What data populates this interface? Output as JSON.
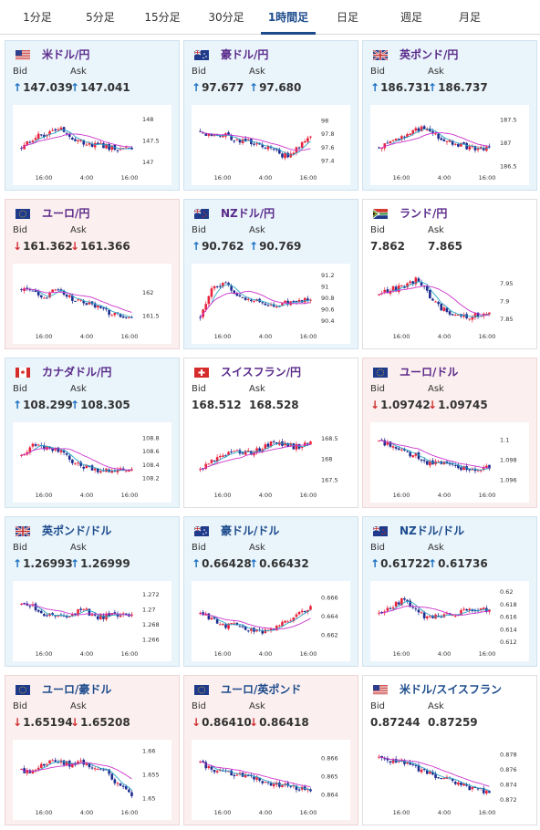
{
  "tabs": [
    "1分足",
    "5分足",
    "15分足",
    "30分足",
    "1時間足",
    "日足",
    "週足",
    "月足"
  ],
  "active_tab": 4,
  "labels": {
    "bid": "Bid",
    "ask": "Ask"
  },
  "colors": {
    "up_arrow": "#1b6fc2",
    "down_arrow": "#d03030",
    "candle_up": "#e8233b",
    "candle_down": "#1e2c8f",
    "ma_short": "#2aa6c7",
    "ma_long": "#cc33cc",
    "bg_up": "#e9f4fb",
    "bg_down": "#fcefef"
  },
  "cards": [
    {
      "pair": "米ドル/円",
      "flag": "us",
      "bid": "147.039",
      "ask": "147.041",
      "dir": "up",
      "theme": "blue",
      "title_color": "purple",
      "chart": {
        "x_ticks": [
          "16:00",
          "4:00",
          "16:00"
        ],
        "y_ticks": [
          "148",
          "147.5",
          "147"
        ],
        "ylim": [
          146.8,
          148.2
        ]
      }
    },
    {
      "pair": "豪ドル/円",
      "flag": "au",
      "bid": "97.677",
      "ask": "97.680",
      "dir": "up",
      "theme": "blue",
      "title_color": "purple",
      "chart": {
        "x_ticks": [
          "16:00",
          "4:00",
          "16:00"
        ],
        "y_ticks": [
          "98",
          "97.8",
          "97.6",
          "97.4"
        ],
        "ylim": [
          97.25,
          98.15
        ]
      }
    },
    {
      "pair": "英ポンド/円",
      "flag": "gb",
      "bid": "186.731",
      "ask": "186.737",
      "dir": "up",
      "theme": "blue",
      "title_color": "purple",
      "chart": {
        "x_ticks": [
          "16:00",
          "4:00",
          "16:00"
        ],
        "y_ticks": [
          "187.5",
          "187",
          "186.5"
        ],
        "ylim": [
          186.4,
          187.7
        ]
      }
    },
    {
      "pair": "ユーロ/円",
      "flag": "eu",
      "bid": "161.362",
      "ask": "161.366",
      "dir": "down",
      "theme": "red",
      "title_color": "purple",
      "chart": {
        "x_ticks": [
          "16:00",
          "4:00",
          "16:00"
        ],
        "y_ticks": [
          "162",
          "161.5"
        ],
        "ylim": [
          161.2,
          162.5
        ]
      }
    },
    {
      "pair": "NZドル/円",
      "flag": "nz",
      "bid": "90.762",
      "ask": "90.769",
      "dir": "up",
      "theme": "blue",
      "title_color": "purple",
      "chart": {
        "x_ticks": [
          "16:00",
          "4:00",
          "16:00"
        ],
        "y_ticks": [
          "91.2",
          "91",
          "90.8",
          "90.6",
          "90.4"
        ],
        "ylim": [
          90.25,
          91.3
        ]
      }
    },
    {
      "pair": "ランド/円",
      "flag": "za",
      "bid": "7.862",
      "ask": "7.865",
      "dir": "none",
      "theme": "white",
      "title_color": "purple",
      "chart": {
        "x_ticks": [
          "16:00",
          "4:00",
          "16:00"
        ],
        "y_ticks": [
          "7.95",
          "7.9",
          "7.85"
        ],
        "ylim": [
          7.82,
          7.99
        ]
      }
    },
    {
      "pair": "カナダドル/円",
      "flag": "ca",
      "bid": "108.299",
      "ask": "108.305",
      "dir": "up",
      "theme": "blue",
      "title_color": "purple",
      "chart": {
        "x_ticks": [
          "16:00",
          "4:00",
          "16:00"
        ],
        "y_ticks": [
          "108.8",
          "108.6",
          "108.4",
          "108.2"
        ],
        "ylim": [
          108.05,
          108.95
        ]
      }
    },
    {
      "pair": "スイスフラン/円",
      "flag": "ch",
      "bid": "168.512",
      "ask": "168.528",
      "dir": "none",
      "theme": "white",
      "title_color": "purple",
      "chart": {
        "x_ticks": [
          "16:00",
          "4:00",
          "16:00"
        ],
        "y_ticks": [
          "168.5",
          "168",
          "167.5"
        ],
        "ylim": [
          167.3,
          168.75
        ]
      }
    },
    {
      "pair": "ユーロ/ドル",
      "flag": "eu",
      "bid": "1.09742",
      "ask": "1.09745",
      "dir": "down",
      "theme": "red",
      "title_color": "purple",
      "chart": {
        "x_ticks": [
          "16:00",
          "4:00",
          "16:00"
        ],
        "y_ticks": [
          "1.1",
          "1.098",
          "1.096"
        ],
        "ylim": [
          1.0952,
          1.1012
        ]
      }
    },
    {
      "pair": "英ポンド/ドル",
      "flag": "gb",
      "bid": "1.26993",
      "ask": "1.26999",
      "dir": "up",
      "theme": "blue",
      "title_color": "blue",
      "chart": {
        "x_ticks": [
          "16:00",
          "4:00",
          "16:00"
        ],
        "y_ticks": [
          "1.272",
          "1.27",
          "1.268",
          "1.266"
        ],
        "ylim": [
          1.265,
          1.273
        ]
      }
    },
    {
      "pair": "豪ドル/ドル",
      "flag": "au",
      "bid": "0.66428",
      "ask": "0.66432",
      "dir": "up",
      "theme": "blue",
      "title_color": "blue",
      "chart": {
        "x_ticks": [
          "16:00",
          "4:00",
          "16:00"
        ],
        "y_ticks": [
          "0.666",
          "0.664",
          "0.662"
        ],
        "ylim": [
          0.6607,
          0.6672
        ]
      }
    },
    {
      "pair": "NZドル/ドル",
      "flag": "nz",
      "bid": "0.61722",
      "ask": "0.61736",
      "dir": "up",
      "theme": "blue",
      "title_color": "blue",
      "chart": {
        "x_ticks": [
          "16:00",
          "4:00",
          "16:00"
        ],
        "y_ticks": [
          "0.62",
          "0.618",
          "0.616",
          "0.614",
          "0.612"
        ],
        "ylim": [
          0.6112,
          0.6208
        ]
      }
    },
    {
      "pair": "ユーロ/豪ドル",
      "flag": "eu",
      "bid": "1.65194",
      "ask": "1.65208",
      "dir": "down",
      "theme": "red",
      "title_color": "blue",
      "chart": {
        "x_ticks": [
          "16:00",
          "4:00",
          "16:00"
        ],
        "y_ticks": [
          "1.66",
          "1.655",
          "1.65"
        ],
        "ylim": [
          1.6485,
          1.6612
        ]
      }
    },
    {
      "pair": "ユーロ/英ポンド",
      "flag": "eu",
      "bid": "0.86410",
      "ask": "0.86418",
      "dir": "down",
      "theme": "red",
      "title_color": "blue",
      "chart": {
        "x_ticks": [
          "16:00",
          "4:00",
          "16:00"
        ],
        "y_ticks": [
          "0.866",
          "0.865",
          "0.864"
        ],
        "ylim": [
          0.8634,
          0.8667
        ]
      }
    },
    {
      "pair": "米ドル/スイスフラン",
      "flag": "us",
      "bid": "0.87244",
      "ask": "0.87259",
      "dir": "none",
      "theme": "white",
      "title_color": "blue",
      "chart": {
        "x_ticks": [
          "16:00",
          "4:00",
          "16:00"
        ],
        "y_ticks": [
          "0.878",
          "0.876",
          "0.874",
          "0.872"
        ],
        "ylim": [
          0.8712,
          0.8792
        ]
      }
    }
  ]
}
